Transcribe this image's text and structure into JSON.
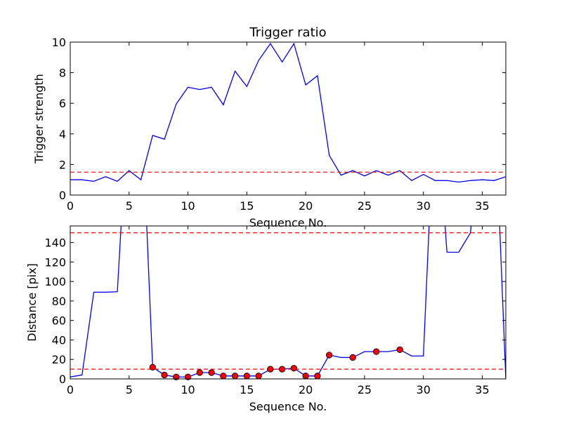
{
  "chart_data": [
    {
      "type": "line",
      "title": "Trigger ratio",
      "xlabel": "Sequence No.",
      "ylabel": "Trigger strength",
      "xlim": [
        0,
        37
      ],
      "ylim": [
        0,
        10
      ],
      "xticks": [
        0,
        5,
        10,
        15,
        20,
        25,
        30,
        35
      ],
      "yticks": [
        0,
        2,
        4,
        6,
        8,
        10
      ],
      "grid": false,
      "series": [
        {
          "color": "#0000ff",
          "style": "solid",
          "x": [
            0,
            1,
            2,
            3,
            4,
            5,
            6,
            7,
            8,
            9,
            10,
            11,
            12,
            13,
            14,
            15,
            16,
            17,
            18,
            19,
            20,
            21,
            22,
            23,
            24,
            25,
            26,
            27,
            28,
            29,
            30,
            31,
            32,
            33,
            34,
            35,
            36,
            37
          ],
          "y": [
            1.0,
            1.0,
            0.9,
            1.2,
            0.9,
            1.6,
            1.0,
            3.9,
            3.65,
            5.95,
            7.05,
            6.9,
            7.05,
            5.9,
            8.1,
            7.1,
            8.8,
            9.9,
            8.7,
            9.9,
            7.2,
            7.8,
            2.6,
            1.3,
            1.6,
            1.25,
            1.6,
            1.3,
            1.6,
            0.95,
            1.35,
            0.95,
            0.95,
            0.85,
            0.95,
            1.0,
            0.95,
            1.2
          ]
        }
      ],
      "hlines": [
        {
          "y": 1.5,
          "color": "#ff0000",
          "style": "dashed"
        }
      ]
    },
    {
      "type": "line",
      "title": "",
      "xlabel": "Sequence No.",
      "ylabel": "Distance [pix]",
      "xlim": [
        0,
        37
      ],
      "ylim": [
        0,
        157
      ],
      "xticks": [
        0,
        5,
        10,
        15,
        20,
        25,
        30,
        35
      ],
      "yticks": [
        0,
        20,
        40,
        60,
        80,
        100,
        120,
        140
      ],
      "grid": false,
      "series": [
        {
          "color": "#0000ff",
          "style": "solid",
          "x": [
            0,
            1,
            2,
            3,
            4,
            5,
            6,
            7,
            8,
            9,
            10,
            11,
            12,
            13,
            14,
            15,
            16,
            17,
            18,
            19,
            20,
            21,
            22,
            23,
            24,
            25,
            26,
            27,
            28,
            29,
            30,
            31,
            32,
            33,
            34,
            35,
            36,
            37
          ],
          "y": [
            2,
            4,
            89,
            89,
            89.5,
            300,
            300,
            12,
            4,
            2,
            2,
            6.5,
            6.5,
            3,
            3,
            3,
            3,
            10,
            10,
            11,
            3,
            3,
            24.5,
            22,
            22,
            28,
            28,
            28,
            30,
            23.5,
            23.5,
            300,
            130,
            130,
            150,
            300,
            300,
            0
          ]
        }
      ],
      "markers": {
        "color": "#ff0000",
        "x": [
          7,
          8,
          9,
          10,
          11,
          12,
          13,
          14,
          15,
          16,
          17,
          18,
          19,
          20,
          21,
          22,
          24,
          26,
          28
        ],
        "y": [
          12,
          4,
          2,
          2,
          6.5,
          6.5,
          3,
          3,
          3,
          3,
          10,
          10,
          11,
          3,
          3,
          24.5,
          22,
          28,
          30
        ]
      },
      "hlines": [
        {
          "y": 10,
          "color": "#ff0000",
          "style": "dashed"
        },
        {
          "y": 150,
          "color": "#ff0000",
          "style": "dashed"
        }
      ]
    }
  ]
}
